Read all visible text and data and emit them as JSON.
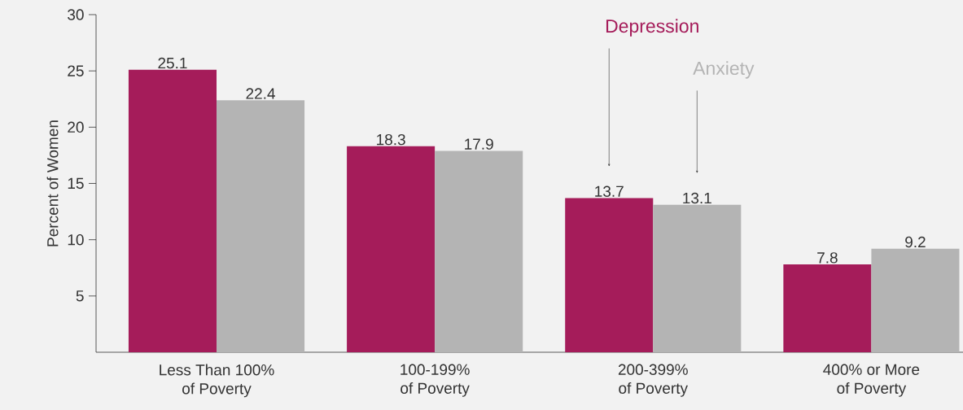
{
  "chart_data": {
    "type": "bar",
    "ylabel": "Percent of Women",
    "categories": [
      "Less Than 100% of Poverty",
      "100-199% of Poverty",
      "200-399% of Poverty",
      "400% or More of Poverty"
    ],
    "series": [
      {
        "name": "Depression",
        "color": "#a51c5a",
        "values": [
          25.1,
          18.3,
          13.7,
          7.8
        ]
      },
      {
        "name": "Anxiety",
        "color": "#b4b4b4",
        "values": [
          22.4,
          17.9,
          13.1,
          9.2
        ]
      }
    ],
    "ylim": [
      0,
      30
    ],
    "yticks": [
      5,
      10,
      15,
      20,
      25,
      30
    ],
    "grid": false,
    "data_labels": true
  }
}
